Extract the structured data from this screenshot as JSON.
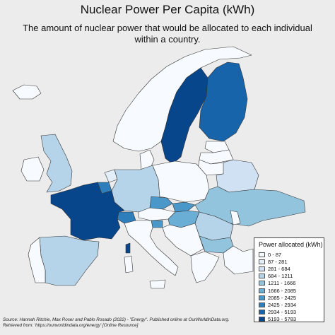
{
  "title": "Nuclear Power Per Capita (kWh)",
  "subtitle": "The amount of nuclear power that would be allocated to each individual within a country.",
  "legend": {
    "title": "Power allocated (kWh)",
    "items": [
      {
        "label": "0 - 87",
        "color": "#f7fbff"
      },
      {
        "label": "87 - 281",
        "color": "#e3eef9"
      },
      {
        "label": "281 - 684",
        "color": "#cfe1f2"
      },
      {
        "label": "684 - 1211",
        "color": "#b5d4e9"
      },
      {
        "label": "1211 - 1666",
        "color": "#93c4de"
      },
      {
        "label": "1666 - 2085",
        "color": "#6aaed6"
      },
      {
        "label": "2085 - 2425",
        "color": "#4a97c9"
      },
      {
        "label": "2425 - 2934",
        "color": "#2e7ebc"
      },
      {
        "label": "2934 - 5193",
        "color": "#1764ab"
      },
      {
        "label": "5193 - 5783",
        "color": "#08468b"
      }
    ]
  },
  "source": "Source: Hannah Ritchie, Max Roser and Pablo Rosado (2022) - \"Energy\". Published online at OurWorldInData.org. Retrieved from: 'https://ourworldindata.org/energy' [Online Resource]",
  "colors": {
    "background": "#ececec",
    "border": "#333333"
  },
  "regions": [
    {
      "name": "Norway",
      "bin": 0
    },
    {
      "name": "Sweden",
      "bin": 9
    },
    {
      "name": "Finland",
      "bin": 8
    },
    {
      "name": "Iceland",
      "bin": 0
    },
    {
      "name": "United Kingdom",
      "bin": 3
    },
    {
      "name": "Ireland",
      "bin": 0
    },
    {
      "name": "France",
      "bin": 9
    },
    {
      "name": "Spain",
      "bin": 3
    },
    {
      "name": "Portugal",
      "bin": 0
    },
    {
      "name": "Belgium",
      "bin": 7
    },
    {
      "name": "Netherlands",
      "bin": 1
    },
    {
      "name": "Germany",
      "bin": 3
    },
    {
      "name": "Switzerland",
      "bin": 7
    },
    {
      "name": "Italy",
      "bin": 0
    },
    {
      "name": "Denmark",
      "bin": 0
    },
    {
      "name": "Poland",
      "bin": 0
    },
    {
      "name": "Czechia",
      "bin": 6
    },
    {
      "name": "Austria",
      "bin": 0
    },
    {
      "name": "Slovakia",
      "bin": 6
    },
    {
      "name": "Hungary",
      "bin": 5
    },
    {
      "name": "Slovenia",
      "bin": 6
    },
    {
      "name": "Ukraine",
      "bin": 4
    },
    {
      "name": "Belarus",
      "bin": 2
    },
    {
      "name": "Lithuania",
      "bin": 0
    },
    {
      "name": "Latvia",
      "bin": 0
    },
    {
      "name": "Estonia",
      "bin": 0
    },
    {
      "name": "Romania",
      "bin": 3
    },
    {
      "name": "Bulgaria",
      "bin": 4
    },
    {
      "name": "Moldova",
      "bin": 0
    },
    {
      "name": "Serbia",
      "bin": 0
    },
    {
      "name": "Greece",
      "bin": 0
    },
    {
      "name": "Turkey",
      "bin": 0
    },
    {
      "name": "Corsica",
      "bin": 9
    },
    {
      "name": "Sardinia",
      "bin": 0
    },
    {
      "name": "Sicily",
      "bin": 0
    }
  ]
}
